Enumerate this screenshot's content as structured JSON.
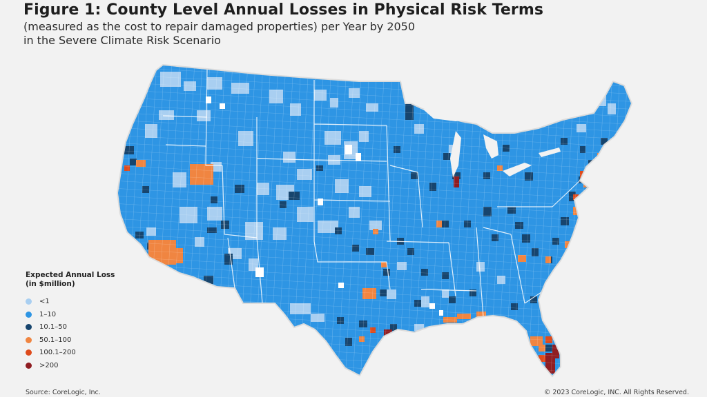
{
  "figure": {
    "title": "Figure 1: County Level Annual Losses in Physical Risk Terms",
    "subtitle_line1": "(measured as the cost to repair damaged properties) per Year by 2050",
    "subtitle_line2": "in the Severe Climate Risk Scenario"
  },
  "legend": {
    "title_line1": "Expected Annual Loss",
    "title_line2": "(in $million)",
    "items": [
      {
        "label": "<1",
        "color": "#a9cff1"
      },
      {
        "label": "1–10",
        "color": "#2e95e4"
      },
      {
        "label": "10.1–50",
        "color": "#17456e"
      },
      {
        "label": "50.1–100",
        "color": "#f08541"
      },
      {
        "label": "100.1–200",
        "color": "#de4b1c"
      },
      {
        "label": ">200",
        "color": "#8f1d22"
      }
    ]
  },
  "map": {
    "base_category": "1–10",
    "region": "Contiguous United States, county level"
  },
  "footer": {
    "source": "Source: CoreLogic, Inc.",
    "copyright": "© 2023 CoreLogic, INC. All Rights Reserved."
  }
}
